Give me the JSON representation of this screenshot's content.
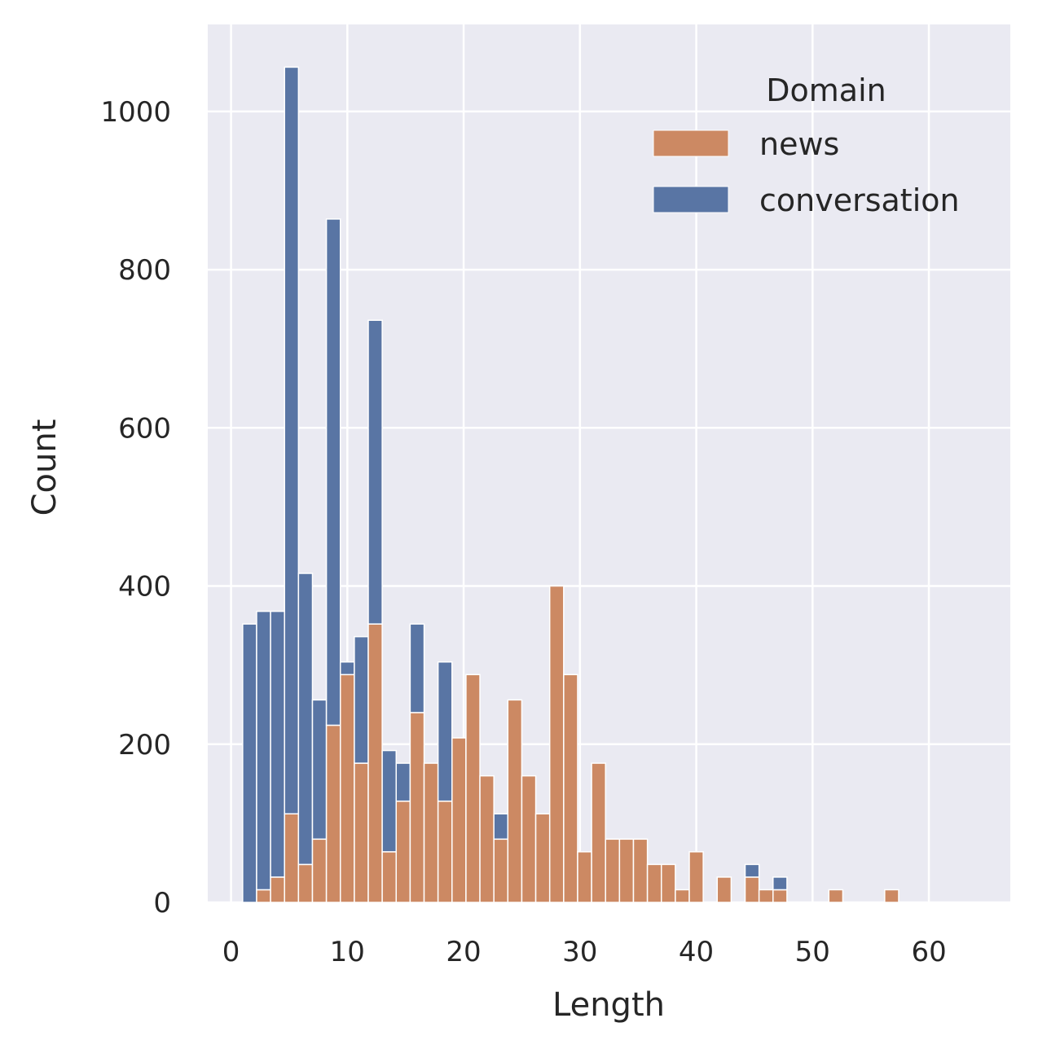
{
  "chart_data": {
    "type": "bar",
    "stacked": true,
    "xlabel": "Length",
    "ylabel": "Count",
    "xlim": [
      -2,
      67
    ],
    "ylim": [
      0,
      1110
    ],
    "xticks": [
      0,
      10,
      20,
      30,
      40,
      50,
      60
    ],
    "yticks": [
      0,
      200,
      400,
      600,
      800,
      1000
    ],
    "grid": true,
    "bin_width": 1.2,
    "bin_edges_start": 1.0,
    "legend": {
      "title": "Domain",
      "position": "top-right"
    },
    "colors": {
      "news": "#cc8963",
      "conversation": "#5975a4",
      "background": "#eaeaf2",
      "grid": "#ffffff"
    },
    "series": [
      {
        "name": "news",
        "values": [
          0,
          16,
          32,
          112,
          48,
          80,
          224,
          288,
          176,
          352,
          64,
          128,
          240,
          176,
          128,
          208,
          288,
          160,
          80,
          256,
          160,
          112,
          400,
          288,
          64,
          176,
          80,
          80,
          80,
          48,
          48,
          16,
          64,
          0,
          32,
          0,
          32,
          16,
          16,
          0,
          0,
          0,
          16,
          0,
          0,
          0,
          16
        ]
      },
      {
        "name": "conversation",
        "values": [
          352,
          352,
          336,
          944,
          368,
          176,
          640,
          16,
          160,
          384,
          128,
          48,
          112,
          0,
          176,
          0,
          0,
          0,
          32,
          0,
          0,
          0,
          0,
          0,
          0,
          0,
          0,
          0,
          0,
          0,
          0,
          0,
          0,
          0,
          0,
          0,
          16,
          0,
          16,
          0,
          0,
          0,
          0,
          0,
          0,
          0,
          0
        ]
      }
    ]
  }
}
